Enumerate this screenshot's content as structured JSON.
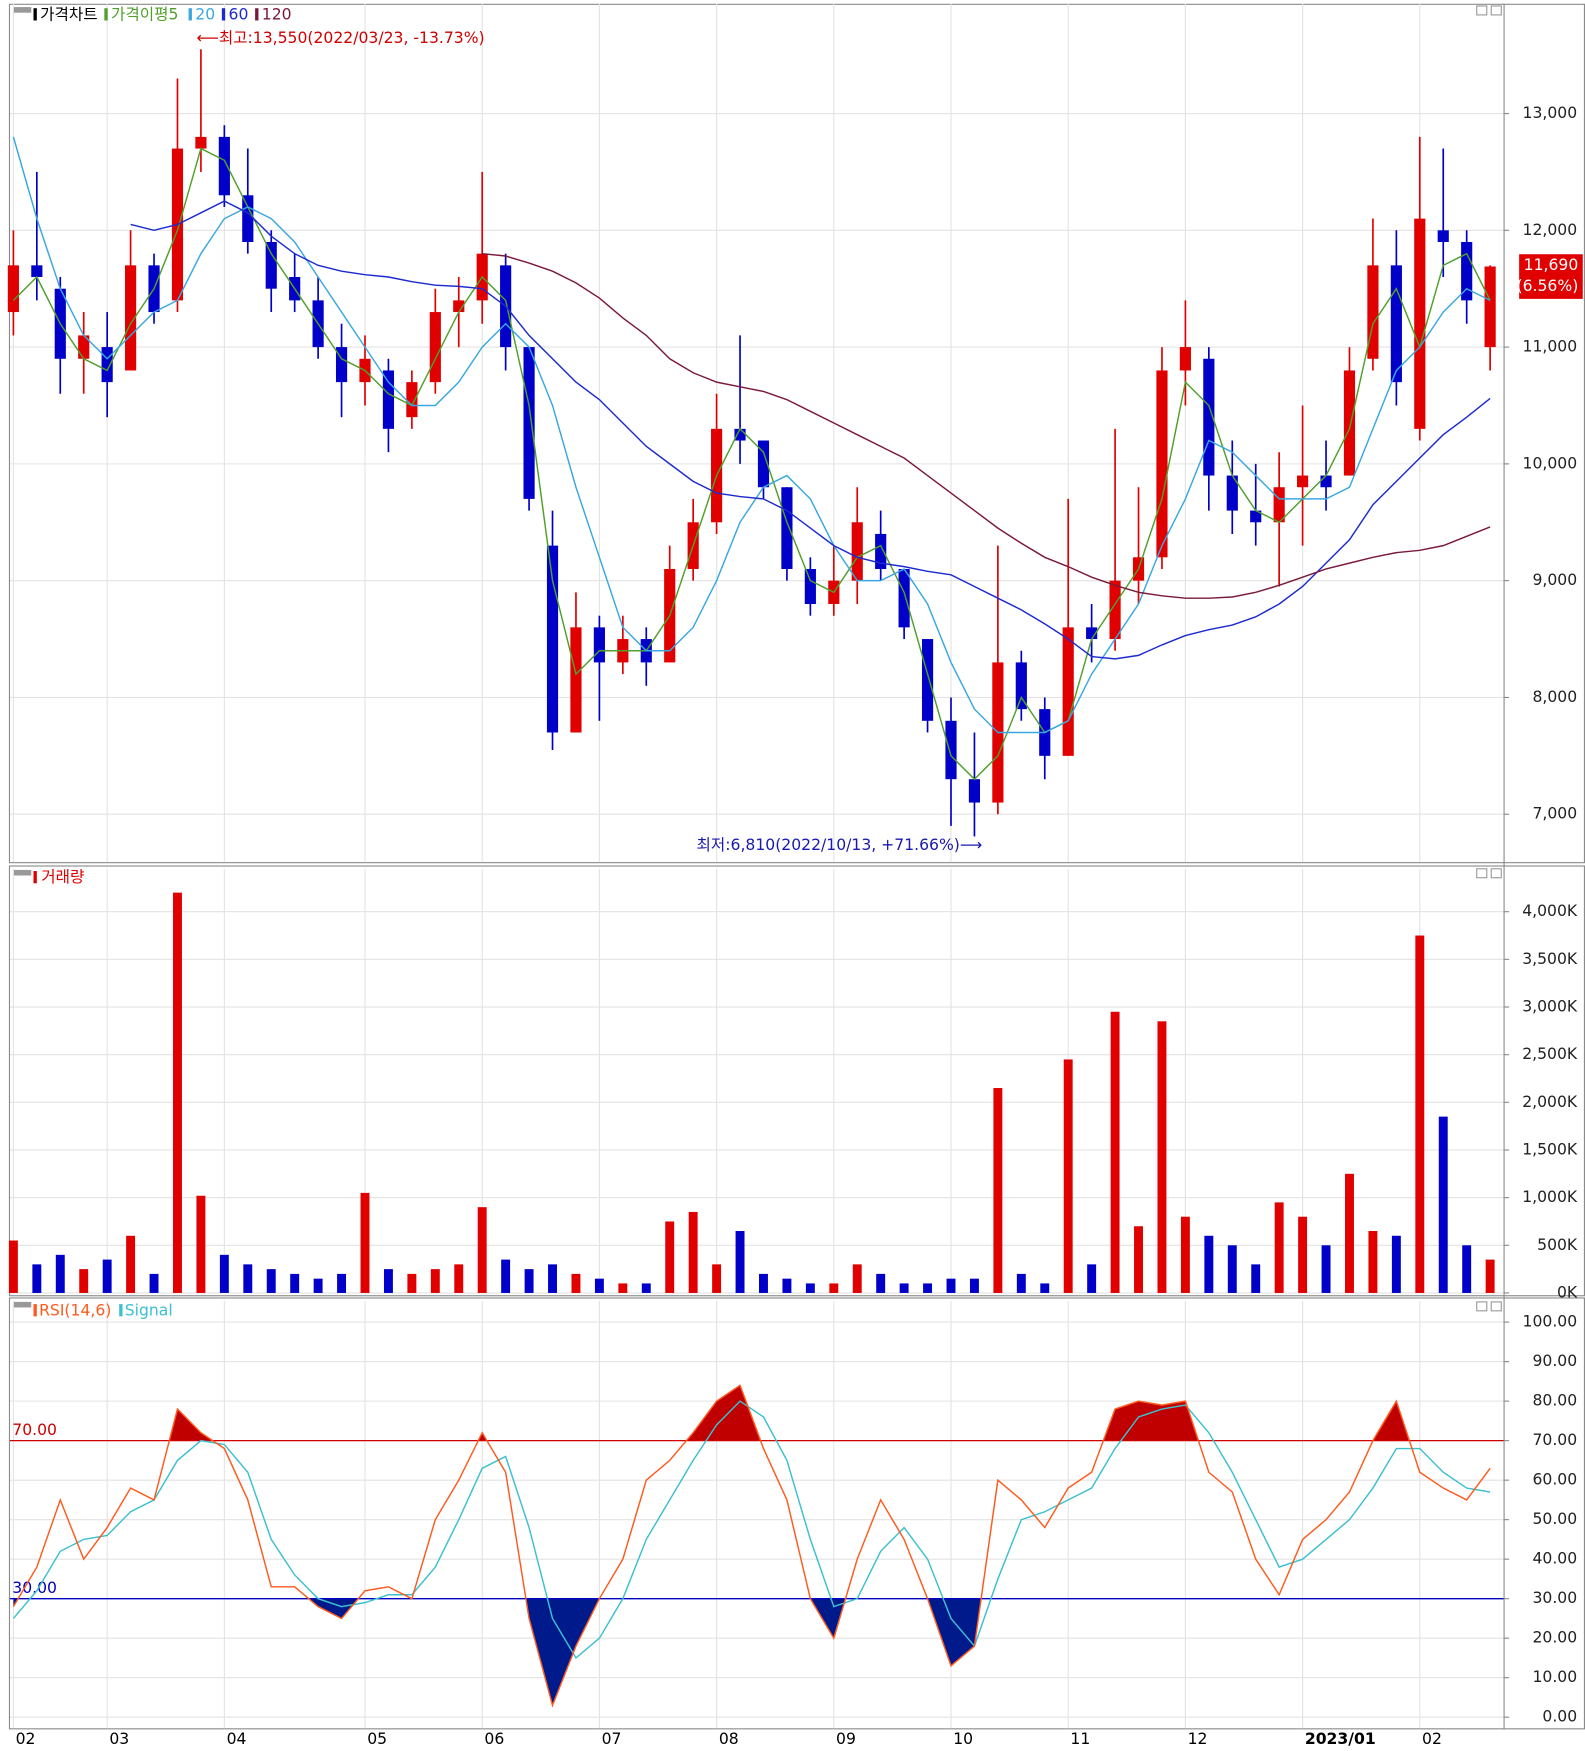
{
  "chart_data": [
    {
      "type": "candlestick",
      "title": "가격차트",
      "ma_title": "가격이평",
      "categories": [
        "02",
        null,
        null,
        null,
        "03",
        null,
        null,
        null,
        null,
        "04",
        null,
        null,
        null,
        null,
        null,
        "05",
        null,
        null,
        null,
        null,
        "06",
        null,
        null,
        null,
        null,
        "07",
        null,
        null,
        null,
        null,
        "08",
        null,
        null,
        null,
        null,
        "09",
        null,
        null,
        null,
        null,
        "10",
        null,
        null,
        null,
        null,
        "11",
        null,
        null,
        null,
        null,
        "12",
        null,
        null,
        null,
        null,
        "2023/01",
        null,
        null,
        null,
        null,
        "02",
        null,
        null,
        null
      ],
      "open": [
        11300,
        11700,
        11500,
        10900,
        11000,
        10800,
        11700,
        11400,
        12700,
        12800,
        12300,
        11900,
        11600,
        11400,
        11000,
        10700,
        10800,
        10400,
        10700,
        11300,
        11400,
        11700,
        11000,
        9300,
        7700,
        8600,
        8300,
        8500,
        8300,
        9100,
        9500,
        10300,
        10200,
        9800,
        9100,
        8800,
        9000,
        9400,
        9100,
        8500,
        7800,
        7300,
        7100,
        8300,
        7900,
        7500,
        8600,
        8500,
        9000,
        9200,
        10800,
        10900,
        9900,
        9600,
        9500,
        9800,
        9900,
        9900,
        10900,
        11700,
        10300,
        12000,
        11900,
        11000
      ],
      "high": [
        12000,
        12500,
        11600,
        11300,
        11300,
        12000,
        11800,
        13300,
        13550,
        12900,
        12700,
        12000,
        11800,
        11600,
        11200,
        11100,
        10900,
        10800,
        11500,
        11600,
        12500,
        11800,
        11000,
        9600,
        8900,
        8700,
        8700,
        8600,
        9300,
        9700,
        10600,
        11100,
        10200,
        9800,
        9200,
        9300,
        9800,
        9600,
        9100,
        8500,
        8000,
        7700,
        9300,
        8400,
        8000,
        9700,
        8800,
        10300,
        9800,
        11000,
        11400,
        11000,
        10200,
        10000,
        10100,
        10500,
        10200,
        11000,
        12100,
        12000,
        12800,
        12700,
        12000,
        11700
      ],
      "low": [
        11100,
        11400,
        10600,
        10600,
        10400,
        10800,
        11200,
        11300,
        12500,
        12200,
        11800,
        11300,
        11300,
        10900,
        10400,
        10500,
        10100,
        10300,
        10600,
        11000,
        11200,
        10800,
        9600,
        7550,
        7700,
        7800,
        8200,
        8100,
        8300,
        9000,
        9400,
        10000,
        9700,
        9000,
        8700,
        8700,
        8800,
        9000,
        8500,
        7700,
        6900,
        6810,
        7000,
        7800,
        7300,
        7500,
        8300,
        8400,
        8800,
        9100,
        10500,
        9600,
        9400,
        9300,
        8950,
        9300,
        9600,
        9900,
        10800,
        10500,
        10200,
        11600,
        11200,
        10800
      ],
      "close": [
        11700,
        11600,
        10900,
        11100,
        10700,
        11700,
        11300,
        12700,
        12800,
        12300,
        11900,
        11500,
        11400,
        11000,
        10700,
        10900,
        10300,
        10700,
        11300,
        11400,
        11800,
        11000,
        9700,
        7700,
        8600,
        8300,
        8500,
        8300,
        9100,
        9500,
        10300,
        10200,
        9800,
        9100,
        8800,
        9000,
        9500,
        9100,
        8600,
        7800,
        7300,
        7100,
        8300,
        7900,
        7500,
        8600,
        8500,
        9000,
        9200,
        10800,
        11000,
        9900,
        9600,
        9500,
        9800,
        9900,
        9800,
        10800,
        11700,
        10700,
        12100,
        11900,
        11400,
        11690
      ],
      "up_color": "#e00000",
      "down_color": "#0000c8",
      "series": [
        {
          "name": "5",
          "color": "#4fa02a",
          "values": [
            11400,
            11600,
            11200,
            10900,
            10800,
            11200,
            11500,
            12000,
            12700,
            12600,
            12200,
            11800,
            11500,
            11200,
            10900,
            10800,
            10600,
            10500,
            10900,
            11300,
            11600,
            11400,
            10500,
            9000,
            8200,
            8400,
            8400,
            8400,
            8700,
            9300,
            9900,
            10300,
            10100,
            9500,
            9000,
            8900,
            9200,
            9300,
            8900,
            8200,
            7500,
            7300,
            7500,
            8000,
            7700,
            7800,
            8500,
            8800,
            9100,
            9700,
            10700,
            10500,
            9900,
            9600,
            9500,
            9700,
            9900,
            10300,
            11200,
            11500,
            11000,
            11700,
            11800,
            11400
          ]
        },
        {
          "name": "20",
          "color": "#3aa8e0",
          "values": [
            12800,
            12100,
            11500,
            11100,
            10900,
            11100,
            11300,
            11400,
            11800,
            12100,
            12200,
            12100,
            11900,
            11600,
            11300,
            11000,
            10700,
            10500,
            10500,
            10700,
            11000,
            11200,
            11000,
            10500,
            9800,
            9200,
            8600,
            8400,
            8400,
            8600,
            9000,
            9500,
            9800,
            9900,
            9700,
            9300,
            9000,
            9000,
            9100,
            8800,
            8300,
            7900,
            7700,
            7700,
            7700,
            7800,
            8200,
            8500,
            8800,
            9300,
            9700,
            10200,
            10100,
            9900,
            9700,
            9700,
            9700,
            9800,
            10300,
            10800,
            11000,
            11300,
            11500,
            11400
          ]
        },
        {
          "name": "60",
          "color": "#1c2ad0",
          "values": [
            null,
            null,
            null,
            null,
            null,
            12050,
            12000,
            12050,
            12150,
            12250,
            12150,
            11950,
            11800,
            11700,
            11650,
            11620,
            11600,
            11560,
            11530,
            11520,
            11500,
            11350,
            11100,
            10900,
            10700,
            10550,
            10350,
            10150,
            10000,
            9850,
            9750,
            9720,
            9700,
            9600,
            9450,
            9300,
            9200,
            9150,
            9120,
            9080,
            9050,
            8950,
            8850,
            8750,
            8630,
            8500,
            8350,
            8330,
            8360,
            8450,
            8530,
            8580,
            8620,
            8690,
            8800,
            8950,
            9150,
            9350,
            9650,
            9850,
            10050,
            10250,
            10400,
            10560
          ]
        },
        {
          "name": "120",
          "color": "#7a1a3a",
          "values": [
            null,
            null,
            null,
            null,
            null,
            null,
            null,
            null,
            null,
            null,
            null,
            null,
            null,
            null,
            null,
            null,
            null,
            null,
            null,
            null,
            11800,
            11780,
            11720,
            11650,
            11550,
            11420,
            11250,
            11100,
            10900,
            10780,
            10700,
            10660,
            10620,
            10550,
            10450,
            10350,
            10250,
            10150,
            10050,
            9900,
            9750,
            9600,
            9450,
            9320,
            9200,
            9120,
            9030,
            8960,
            8900,
            8870,
            8850,
            8850,
            8860,
            8900,
            8960,
            9030,
            9100,
            9150,
            9200,
            9240,
            9260,
            9300,
            9380,
            9460
          ]
        }
      ],
      "ylim": [
        6590,
        13940
      ],
      "yticks": [
        {
          "value": 7000,
          "label": "7,000"
        },
        {
          "value": 8000,
          "label": "8,000"
        },
        {
          "value": 9000,
          "label": "9,000"
        },
        {
          "value": 10000,
          "label": "10,000"
        },
        {
          "value": 11000,
          "label": "11,000"
        },
        {
          "value": 12000,
          "label": "12,000"
        },
        {
          "value": 13000,
          "label": "13,000"
        }
      ],
      "grid": true,
      "high_note": "⟵최고:13,550(2022/03/23, -13.73%)",
      "low_note": "최저:6,810(2022/10/13, +71.66%)⟶",
      "last_price": {
        "value": 11690,
        "label": "11,690"
      },
      "last_change": "(6.56%)"
    },
    {
      "type": "bar",
      "title": "거래량",
      "values": [
        550000,
        300000,
        400000,
        250000,
        350000,
        600000,
        200000,
        4200000,
        1020000,
        400000,
        300000,
        250000,
        200000,
        150000,
        200000,
        1050000,
        250000,
        200000,
        250000,
        300000,
        900000,
        350000,
        250000,
        300000,
        200000,
        150000,
        100000,
        100000,
        750000,
        850000,
        300000,
        650000,
        200000,
        150000,
        100000,
        100000,
        300000,
        200000,
        100000,
        100000,
        150000,
        150000,
        2150000,
        200000,
        100000,
        2450000,
        300000,
        2950000,
        700000,
        2850000,
        800000,
        600000,
        500000,
        300000,
        950000,
        800000,
        500000,
        1250000,
        650000,
        600000,
        3750000,
        1850000,
        500000,
        350000
      ],
      "ylim": [
        0,
        4450000
      ],
      "yticks": [
        {
          "value": 0,
          "label": "0K"
        },
        {
          "value": 500000,
          "label": "500K"
        },
        {
          "value": 1000000,
          "label": "1,000K"
        },
        {
          "value": 1500000,
          "label": "1,500K"
        },
        {
          "value": 2000000,
          "label": "2,000K"
        },
        {
          "value": 2500000,
          "label": "2,500K"
        },
        {
          "value": 3000000,
          "label": "3,000K"
        },
        {
          "value": 3500000,
          "label": "3,500K"
        },
        {
          "value": 4000000,
          "label": "4,000K"
        }
      ],
      "grid": true
    },
    {
      "type": "line",
      "series": [
        {
          "name": "RSI(14,6)",
          "color": "#ff5a1e",
          "values": [
            28,
            38,
            55,
            40,
            48,
            58,
            55,
            78,
            72,
            68,
            55,
            33,
            33,
            28,
            25,
            32,
            33,
            30,
            50,
            60,
            72,
            62,
            25,
            3,
            18,
            30,
            40,
            60,
            65,
            72,
            80,
            84,
            68,
            55,
            30,
            20,
            40,
            55,
            45,
            30,
            13,
            18,
            60,
            55,
            48,
            58,
            62,
            78,
            80,
            79,
            80,
            62,
            57,
            40,
            31,
            45,
            50,
            57,
            70,
            80,
            62,
            58,
            55,
            63
          ]
        },
        {
          "name": "Signal",
          "color": "#3cc0d0",
          "values": [
            25,
            32,
            42,
            45,
            46,
            52,
            55,
            65,
            70,
            69,
            62,
            45,
            36,
            30,
            28,
            29,
            31,
            31,
            38,
            50,
            63,
            66,
            48,
            25,
            15,
            20,
            30,
            45,
            55,
            65,
            74,
            80,
            76,
            65,
            45,
            28,
            30,
            42,
            48,
            40,
            25,
            18,
            35,
            50,
            52,
            55,
            58,
            68,
            76,
            78,
            79,
            72,
            62,
            50,
            38,
            40,
            45,
            50,
            58,
            68,
            68,
            62,
            58,
            57
          ]
        }
      ],
      "hlines": [
        {
          "value": 70,
          "label": "70.00",
          "color": "#d00000",
          "fill": "#c00000"
        },
        {
          "value": 30,
          "label": "30.00",
          "color": "#0000c0",
          "fill": "#001a8c"
        }
      ],
      "ylim": [
        -2.8,
        105.4
      ],
      "yticks": [
        {
          "value": 0,
          "label": "0.00"
        },
        {
          "value": 10,
          "label": "10.00"
        },
        {
          "value": 20,
          "label": "20.00"
        },
        {
          "value": 30,
          "label": "30.00"
        },
        {
          "value": 40,
          "label": "40.00"
        },
        {
          "value": 50,
          "label": "50.00"
        },
        {
          "value": 60,
          "label": "60.00"
        },
        {
          "value": 70,
          "label": "70.00"
        },
        {
          "value": 80,
          "label": "80.00"
        },
        {
          "value": 90,
          "label": "90.00"
        },
        {
          "value": 100,
          "label": "100.00"
        }
      ],
      "grid": true
    }
  ]
}
